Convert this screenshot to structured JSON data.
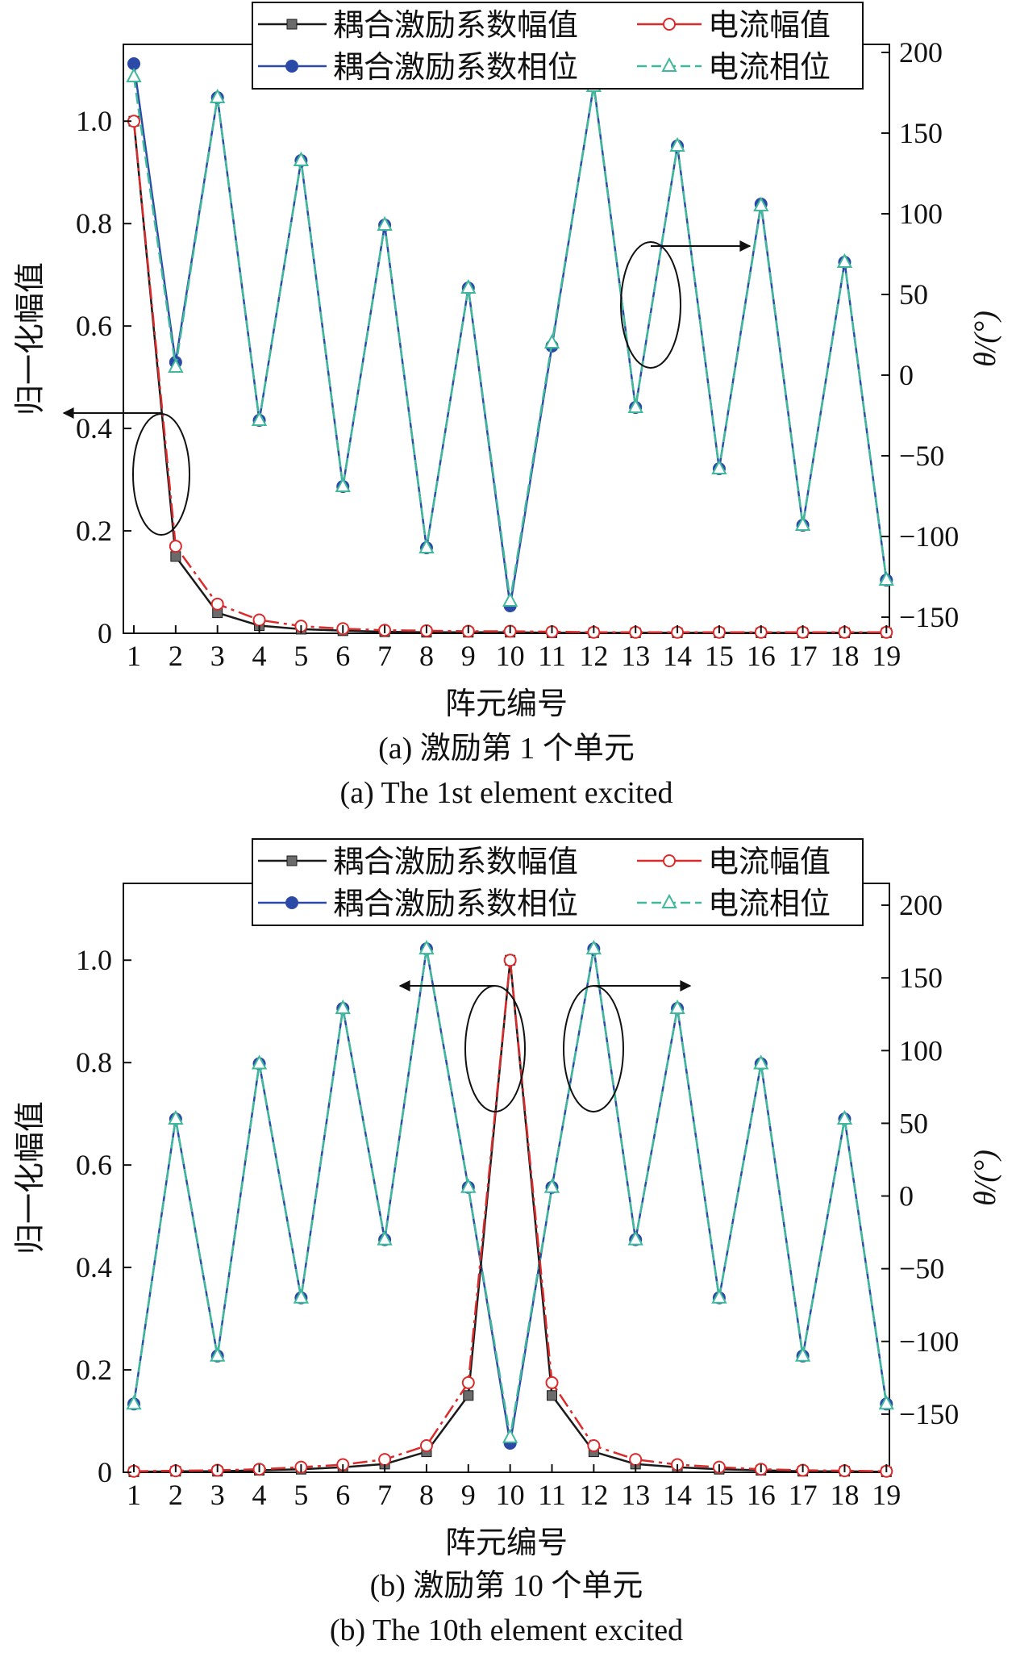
{
  "chart_data": [
    {
      "type": "line",
      "caption_cn": "(a) 激励第 1 个单元",
      "caption_en": "(a) The 1st element excited",
      "xlabel": "阵元编号",
      "ylabel": "归一化幅值",
      "ylabel_right": "θ/(°)",
      "x": [
        1,
        2,
        3,
        4,
        5,
        6,
        7,
        8,
        9,
        10,
        11,
        12,
        13,
        14,
        15,
        16,
        17,
        18,
        19
      ],
      "ylim": [
        0,
        1.15
      ],
      "yticks": [
        "0",
        "0.2",
        "0.4",
        "0.6",
        "0.8",
        "1.0"
      ],
      "ylim_right": [
        -160,
        205
      ],
      "yticks_right": [
        "−150",
        "−100",
        "−50",
        "0",
        "50",
        "100",
        "150",
        "200"
      ],
      "legend_placement": "top",
      "series": [
        {
          "name": "耦合激励系数幅值",
          "axis": "left",
          "color": "#1a1a1a",
          "marker": "square",
          "values": [
            1.0,
            0.15,
            0.04,
            0.015,
            0.008,
            0.005,
            0.003,
            0.002,
            0.002,
            0.002,
            0.001,
            0.001,
            0.001,
            0.001,
            0.001,
            0.001,
            0.001,
            0.001,
            0.001
          ]
        },
        {
          "name": "电流幅值",
          "axis": "left",
          "color": "#d92b2b",
          "marker": "circle-open",
          "values": [
            1.0,
            0.17,
            0.057,
            0.026,
            0.014,
            0.009,
            0.006,
            0.005,
            0.004,
            0.004,
            0.003,
            0.002,
            0.002,
            0.002,
            0.002,
            0.002,
            0.002,
            0.002,
            0.002
          ]
        },
        {
          "name": "耦合激励系数相位",
          "axis": "right",
          "color": "#2b4aa8",
          "marker": "circle-filled",
          "values": [
            193,
            8,
            172,
            -28,
            133,
            -69,
            93,
            -107,
            54,
            -143,
            18,
            180,
            -20,
            142,
            -58,
            106,
            -93,
            70,
            -127
          ]
        },
        {
          "name": "电流相位",
          "axis": "right",
          "color": "#3fb89b",
          "marker": "triangle-open",
          "values": [
            185,
            5,
            172,
            -28,
            133,
            -69,
            93,
            -107,
            54,
            -140,
            20,
            179,
            -20,
            142,
            -58,
            105,
            -93,
            70,
            -127
          ]
        }
      ]
    },
    {
      "type": "line",
      "caption_cn": "(b) 激励第 10 个单元",
      "caption_en": "(b) The 10th element excited",
      "xlabel": "阵元编号",
      "ylabel": "归一化幅值",
      "ylabel_right": "θ/(°)",
      "x": [
        1,
        2,
        3,
        4,
        5,
        6,
        7,
        8,
        9,
        10,
        11,
        12,
        13,
        14,
        15,
        16,
        17,
        18,
        19
      ],
      "ylim": [
        0,
        1.15
      ],
      "yticks": [
        "0",
        "0.2",
        "0.4",
        "0.6",
        "0.8",
        "1.0"
      ],
      "ylim_right": [
        -190,
        215
      ],
      "yticks_right": [
        "−150",
        "−100",
        "−50",
        "0",
        "50",
        "100",
        "150",
        "200"
      ],
      "legend_placement": "top",
      "series": [
        {
          "name": "耦合激励系数幅值",
          "axis": "left",
          "color": "#1a1a1a",
          "marker": "square",
          "values": [
            0.001,
            0.002,
            0.002,
            0.004,
            0.006,
            0.01,
            0.016,
            0.04,
            0.15,
            1.0,
            0.15,
            0.04,
            0.016,
            0.01,
            0.006,
            0.004,
            0.002,
            0.002,
            0.001
          ]
        },
        {
          "name": "电流幅值",
          "axis": "left",
          "color": "#d92b2b",
          "marker": "circle-open",
          "values": [
            0.002,
            0.003,
            0.004,
            0.006,
            0.01,
            0.015,
            0.025,
            0.052,
            0.175,
            1.0,
            0.175,
            0.052,
            0.025,
            0.015,
            0.01,
            0.006,
            0.004,
            0.003,
            0.002
          ]
        },
        {
          "name": "耦合激励系数相位",
          "axis": "right",
          "color": "#2b4aa8",
          "marker": "circle-filled",
          "values": [
            -143,
            53,
            -110,
            91,
            -70,
            129,
            -30,
            170,
            6,
            -170,
            6,
            170,
            -30,
            129,
            -70,
            91,
            -110,
            53,
            -143
          ]
        },
        {
          "name": "电流相位",
          "axis": "right",
          "color": "#3fb89b",
          "marker": "triangle-open",
          "values": [
            -143,
            53,
            -110,
            91,
            -70,
            129,
            -30,
            170,
            6,
            -166,
            6,
            170,
            -30,
            129,
            -70,
            91,
            -110,
            53,
            -143
          ]
        }
      ]
    }
  ]
}
